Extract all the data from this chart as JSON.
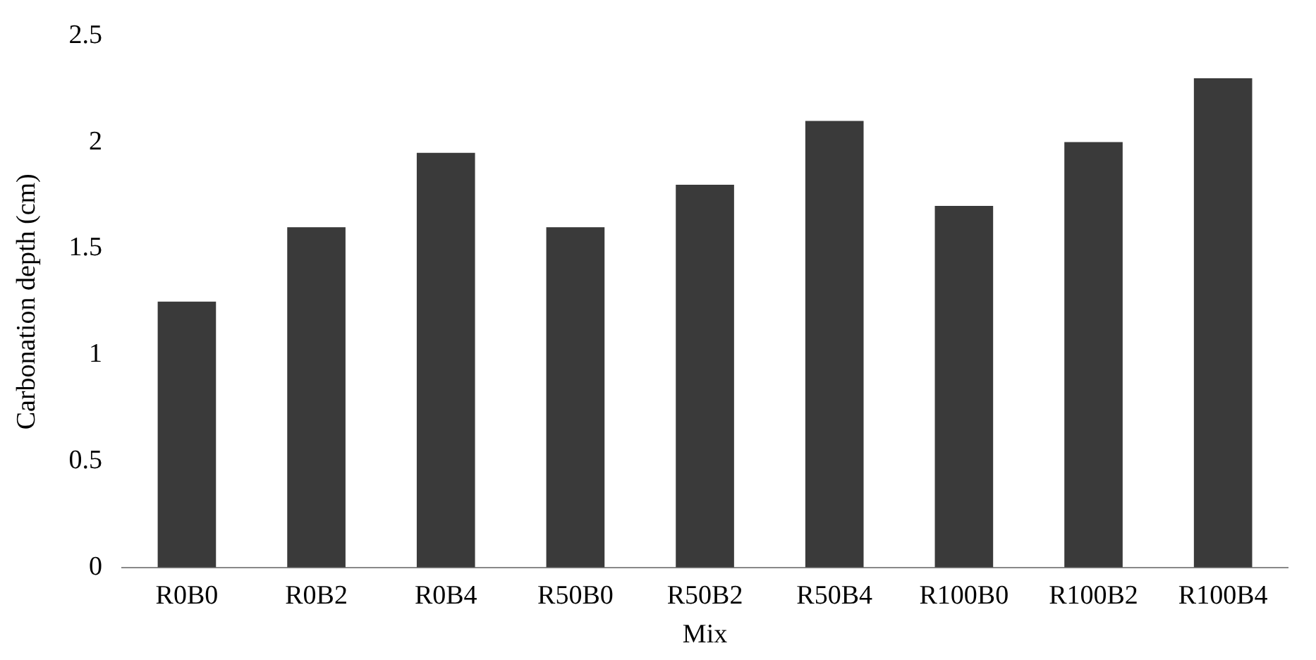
{
  "chart_data": {
    "type": "bar",
    "xlabel": "Mix",
    "ylabel": "Carbonation depth (cm)",
    "categories": [
      "R0B0",
      "R0B2",
      "R0B4",
      "R50B0",
      "R50B2",
      "R50B4",
      "R100B0",
      "R100B2",
      "R100B4"
    ],
    "values": [
      1.25,
      1.6,
      1.95,
      1.6,
      1.8,
      2.1,
      1.7,
      2.0,
      2.3
    ],
    "color": "#3a3a3a",
    "ylim": [
      0,
      2.5
    ],
    "yticks": [
      0,
      0.5,
      1,
      1.5,
      2,
      2.5
    ],
    "grid": false,
    "legend": false
  }
}
